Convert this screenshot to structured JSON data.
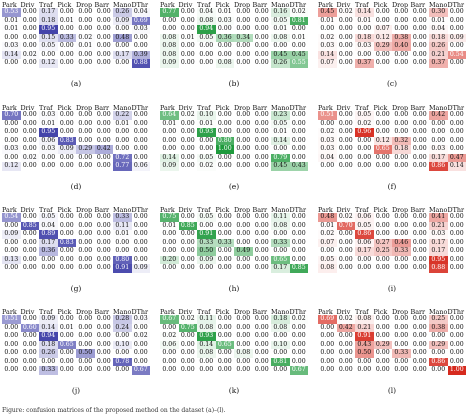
{
  "headers": [
    "Park",
    "Driv",
    "Traf",
    "Pick",
    "Drop",
    "Barr",
    "Mano",
    "DThr"
  ],
  "colors": {
    "blue": "#3a3aa6",
    "green": "#1e9a3c",
    "red": "#d62a1e"
  },
  "chart_data": [
    {
      "type": "heatmap",
      "panel": "(a)",
      "colormap": "blue",
      "rows": [
        [
          0.53,
          0.0,
          0.17,
          0.0,
          0.0,
          0.0,
          0.26,
          0.04
        ],
        [
          0.01,
          0.0,
          0.18,
          0.01,
          0.0,
          0.0,
          0.09,
          0.69
        ],
        [
          0.01,
          0.0,
          0.95,
          0.0,
          0.0,
          0.0,
          0.0,
          0.03
        ],
        [
          0.0,
          0.0,
          0.15,
          0.33,
          0.02,
          0.0,
          0.48,
          0.0
        ],
        [
          0.03,
          0.0,
          0.05,
          0.0,
          0.01,
          0.0,
          0.0,
          0.0
        ],
        [
          0.14,
          0.02,
          0.0,
          0.0,
          0.0,
          0.0,
          0.17,
          0.39
        ],
        [
          0.0,
          0.0,
          0.12,
          0.0,
          0.0,
          0.0,
          0.0,
          0.88
        ]
      ]
    },
    {
      "type": "heatmap",
      "panel": "(b)",
      "colormap": "green",
      "rows": [
        [
          0.77,
          0.0,
          0.04,
          0.01,
          0.0,
          0.0,
          0.16,
          0.02
        ],
        [
          0.0,
          0.0,
          0.08,
          0.03,
          0.0,
          0.0,
          0.05,
          0.81
        ],
        [
          0.0,
          0.0,
          0.94,
          0.0,
          0.0,
          0.0,
          0.01,
          0.0
        ],
        [
          0.08,
          0.01,
          0.05,
          0.36,
          0.34,
          0.0,
          0.08,
          0.01
        ],
        [
          0.08,
          0.0,
          0.0,
          0.0,
          0.0,
          0.0,
          0.0,
          0.0
        ],
        [
          0.08,
          0.0,
          0.0,
          0.0,
          0.0,
          0.0,
          0.45,
          0.45
        ],
        [
          0.09,
          0.0,
          0.0,
          0.08,
          0.0,
          0.0,
          0.26,
          0.55
        ]
      ]
    },
    {
      "type": "heatmap",
      "panel": "(c)",
      "colormap": "red",
      "rows": [
        [
          0.45,
          0.02,
          0.14,
          0.0,
          0.0,
          0.0,
          0.3,
          0.0
        ],
        [
          0.01,
          0.0,
          0.01,
          0.0,
          0.0,
          0.0,
          0.01,
          0.0
        ],
        [
          0.0,
          0.0,
          0.0,
          0.07,
          0.0,
          0.0,
          0.04,
          0.0
        ],
        [
          0.02,
          0.0,
          0.18,
          0.12,
          0.38,
          0.0,
          0.18,
          0.09
        ],
        [
          0.03,
          0.0,
          0.03,
          0.29,
          0.4,
          0.0,
          0.26,
          0.0
        ],
        [
          0.14,
          0.0,
          0.0,
          0.0,
          0.0,
          0.0,
          0.21,
          0.54
        ],
        [
          0.07,
          0.0,
          0.37,
          0.0,
          0.0,
          0.0,
          0.37,
          0.0
        ]
      ]
    },
    {
      "type": "heatmap",
      "panel": "(d)",
      "colormap": "blue",
      "rows": [
        [
          0.7,
          0.0,
          0.03,
          0.0,
          0.0,
          0.0,
          0.22,
          0.0
        ],
        [
          0.0,
          0.0,
          0.01,
          0.0,
          0.0,
          0.0,
          0.01,
          0.0
        ],
        [
          0.0,
          0.0,
          0.95,
          0.0,
          0.0,
          0.0,
          0.0,
          0.0
        ],
        [
          0.0,
          0.0,
          0.06,
          0.83,
          0.0,
          0.0,
          0.0,
          0.0
        ],
        [
          0.03,
          0.0,
          0.03,
          0.09,
          0.29,
          0.42,
          0.0,
          0.0
        ],
        [
          0.0,
          0.02,
          0.0,
          0.0,
          0.0,
          0.0,
          0.72,
          0.0
        ],
        [
          0.12,
          0.0,
          0.0,
          0.0,
          0.0,
          0.0,
          0.77,
          0.06
        ]
      ]
    },
    {
      "type": "heatmap",
      "panel": "(e)",
      "colormap": "green",
      "rows": [
        [
          0.64,
          0.02,
          0.1,
          0.0,
          0.0,
          0.0,
          0.23,
          0.0
        ],
        [
          0.01,
          0.0,
          0.01,
          0.0,
          0.0,
          0.0,
          0.05,
          0.0
        ],
        [
          0.0,
          0.0,
          0.93,
          0.0,
          0.0,
          0.0,
          0.01,
          0.0
        ],
        [
          0.0,
          0.0,
          0.0,
          0.8,
          0.0,
          0.0,
          0.14,
          0.0
        ],
        [
          0.0,
          0.0,
          0.0,
          1.0,
          0.0,
          0.0,
          0.0,
          0.0
        ],
        [
          0.14,
          0.0,
          0.05,
          0.0,
          0.0,
          0.0,
          0.79,
          0.0
        ],
        [
          0.09,
          0.0,
          0.02,
          0.0,
          0.0,
          0.0,
          0.45,
          0.43
        ]
      ]
    },
    {
      "type": "heatmap",
      "panel": "(f)",
      "colormap": "red",
      "rows": [
        [
          0.51,
          0.0,
          0.05,
          0.0,
          0.0,
          0.0,
          0.42,
          0.0
        ],
        [
          0.0,
          0.0,
          0.02,
          0.0,
          0.0,
          0.0,
          0.0,
          0.0
        ],
        [
          0.02,
          0.0,
          0.96,
          0.0,
          0.0,
          0.0,
          0.0,
          0.0
        ],
        [
          0.03,
          0.0,
          0.0,
          0.12,
          0.32,
          0.0,
          0.0,
          0.0
        ],
        [
          0.03,
          0.0,
          0.0,
          0.65,
          0.18,
          0.0,
          0.03,
          0.0
        ],
        [
          0.04,
          0.0,
          0.0,
          0.0,
          0.0,
          0.0,
          0.17,
          0.47
        ],
        [
          0.0,
          0.0,
          0.0,
          0.0,
          0.0,
          0.0,
          0.86,
          0.14
        ]
      ]
    },
    {
      "type": "heatmap",
      "panel": "(g)",
      "colormap": "blue",
      "rows": [
        [
          0.54,
          0.0,
          0.05,
          0.0,
          0.0,
          0.0,
          0.33,
          0.0
        ],
        [
          0.0,
          0.85,
          0.04,
          0.0,
          0.0,
          0.0,
          0.11,
          0.0
        ],
        [
          0.09,
          0.0,
          0.89,
          0.0,
          0.0,
          0.0,
          0.01,
          0.0
        ],
        [
          0.0,
          0.0,
          0.17,
          0.83,
          0.0,
          0.0,
          0.0,
          0.0
        ],
        [
          0.0,
          0.0,
          0.36,
          0.0,
          0.0,
          0.0,
          0.0,
          0.0
        ],
        [
          0.13,
          0.0,
          0.0,
          0.0,
          0.0,
          0.0,
          0.8,
          0.0
        ],
        [
          0.0,
          0.0,
          0.0,
          0.0,
          0.0,
          0.0,
          0.91,
          0.09
        ]
      ]
    },
    {
      "type": "heatmap",
      "panel": "(h)",
      "colormap": "green",
      "rows": [
        [
          0.75,
          0.0,
          0.05,
          0.0,
          0.0,
          0.0,
          0.11,
          0.0
        ],
        [
          0.01,
          0.85,
          0.0,
          0.0,
          0.0,
          0.0,
          0.08,
          0.0
        ],
        [
          0.0,
          0.0,
          0.91,
          0.0,
          0.0,
          0.0,
          0.0,
          0.0
        ],
        [
          0.0,
          0.0,
          0.33,
          0.33,
          0.0,
          0.0,
          0.33,
          0.0
        ],
        [
          0.0,
          0.0,
          0.5,
          0.0,
          0.49,
          0.0,
          0.0,
          0.0
        ],
        [
          0.2,
          0.0,
          0.09,
          0.0,
          0.0,
          0.0,
          0.65,
          0.0
        ],
        [
          0.0,
          0.0,
          0.0,
          0.0,
          0.0,
          0.0,
          0.17,
          0.85
        ]
      ]
    },
    {
      "type": "heatmap",
      "panel": "(i)",
      "colormap": "red",
      "rows": [
        [
          0.48,
          0.02,
          0.06,
          0.0,
          0.0,
          0.0,
          0.41,
          0.0
        ],
        [
          0.01,
          0.7,
          0.05,
          0.0,
          0.0,
          0.0,
          0.21,
          0.0
        ],
        [
          0.02,
          0.0,
          0.86,
          0.0,
          0.0,
          0.0,
          0.03,
          0.0
        ],
        [
          0.07,
          0.0,
          0.06,
          0.27,
          0.46,
          0.0,
          0.17,
          0.0
        ],
        [
          0.0,
          0.0,
          0.17,
          0.25,
          0.33,
          0.0,
          0.17,
          0.0
        ],
        [
          0.05,
          0.0,
          0.0,
          0.0,
          0.0,
          0.0,
          0.95,
          0.0
        ],
        [
          0.08,
          0.0,
          0.0,
          0.0,
          0.0,
          0.0,
          0.88,
          0.0
        ]
      ]
    },
    {
      "type": "heatmap",
      "panel": "(j)",
      "colormap": "blue",
      "rows": [
        [
          0.51,
          0.0,
          0.09,
          0.0,
          0.0,
          0.0,
          0.28,
          0.03
        ],
        [
          0.0,
          0.6,
          0.14,
          0.01,
          0.0,
          0.0,
          0.24,
          0.0
        ],
        [
          0.0,
          0.0,
          0.94,
          0.0,
          0.0,
          0.0,
          0.0,
          0.02
        ],
        [
          0.0,
          0.0,
          0.18,
          0.65,
          0.0,
          0.0,
          0.1,
          0.0
        ],
        [
          0.0,
          0.0,
          0.26,
          0.0,
          0.5,
          0.0,
          0.0,
          0.0
        ],
        [
          0.0,
          0.0,
          0.0,
          0.0,
          0.0,
          0.0,
          0.78,
          0.0
        ],
        [
          0.0,
          0.0,
          0.33,
          0.0,
          0.0,
          0.0,
          0.0,
          0.67
        ]
      ]
    },
    {
      "type": "heatmap",
      "panel": "(k)",
      "colormap": "green",
      "rows": [
        [
          0.67,
          0.02,
          0.11,
          0.0,
          0.0,
          0.0,
          0.18,
          0.02
        ],
        [
          0.0,
          0.75,
          0.08,
          0.0,
          0.0,
          0.0,
          0.08,
          0.0
        ],
        [
          0.02,
          0.0,
          0.93,
          0.0,
          0.0,
          0.0,
          0.0,
          0.0
        ],
        [
          0.06,
          0.0,
          0.14,
          0.65,
          0.0,
          0.0,
          0.1,
          0.0
        ],
        [
          0.0,
          0.0,
          0.08,
          0.0,
          0.08,
          0.0,
          0.0,
          0.0
        ],
        [
          0.0,
          0.0,
          0.0,
          0.0,
          0.0,
          0.0,
          0.81,
          0.0
        ],
        [
          0.0,
          0.0,
          0.0,
          0.0,
          0.0,
          0.0,
          0.0,
          0.67
        ]
      ]
    },
    {
      "type": "heatmap",
      "panel": "(l)",
      "colormap": "red",
      "rows": [
        [
          0.69,
          0.02,
          0.08,
          0.0,
          0.0,
          0.0,
          0.25,
          0.0
        ],
        [
          0.0,
          0.42,
          0.21,
          0.0,
          0.0,
          0.0,
          0.38,
          0.0
        ],
        [
          0.0,
          0.0,
          0.91,
          0.0,
          0.0,
          0.0,
          0.0,
          0.0
        ],
        [
          0.0,
          0.0,
          0.43,
          0.29,
          0.0,
          0.0,
          0.29,
          0.0
        ],
        [
          0.0,
          0.0,
          0.5,
          0.0,
          0.33,
          0.0,
          0.0,
          0.0
        ],
        [
          0.0,
          0.0,
          0.0,
          0.0,
          0.0,
          0.0,
          0.86,
          0.0
        ],
        [
          0.0,
          0.0,
          0.0,
          0.0,
          0.0,
          0.0,
          0.0,
          1.0
        ]
      ]
    }
  ],
  "caption": "Figure: confusion matrices of the proposed method on the dataset (a)–(l)."
}
